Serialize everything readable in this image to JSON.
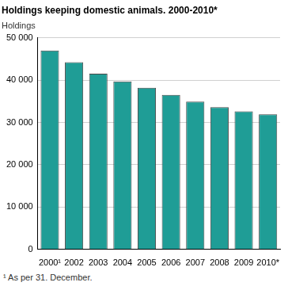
{
  "chart_data": {
    "type": "bar",
    "title": "Holdings keeping domestic animals. 2000-2010*",
    "y_label": "Holdings",
    "footnote": "¹ As per 31. December.",
    "categories": [
      "2000¹",
      "2002",
      "2003",
      "2004",
      "2005",
      "2006",
      "2007",
      "2008",
      "2009",
      "2010*"
    ],
    "values": [
      47000,
      44200,
      41500,
      39700,
      38200,
      36500,
      34900,
      33600,
      32600,
      31900
    ],
    "color": "#1f9d96",
    "ylim": [
      0,
      50000
    ],
    "yticks": [
      0,
      {
        "value": 10000,
        "label": "10 000"
      },
      {
        "value": 20000,
        "label": "20 000"
      },
      {
        "value": 30000,
        "label": "30 000"
      },
      {
        "value": 40000,
        "label": "40 000"
      },
      {
        "value": 50000,
        "label": "50 000"
      }
    ],
    "grid": true
  }
}
